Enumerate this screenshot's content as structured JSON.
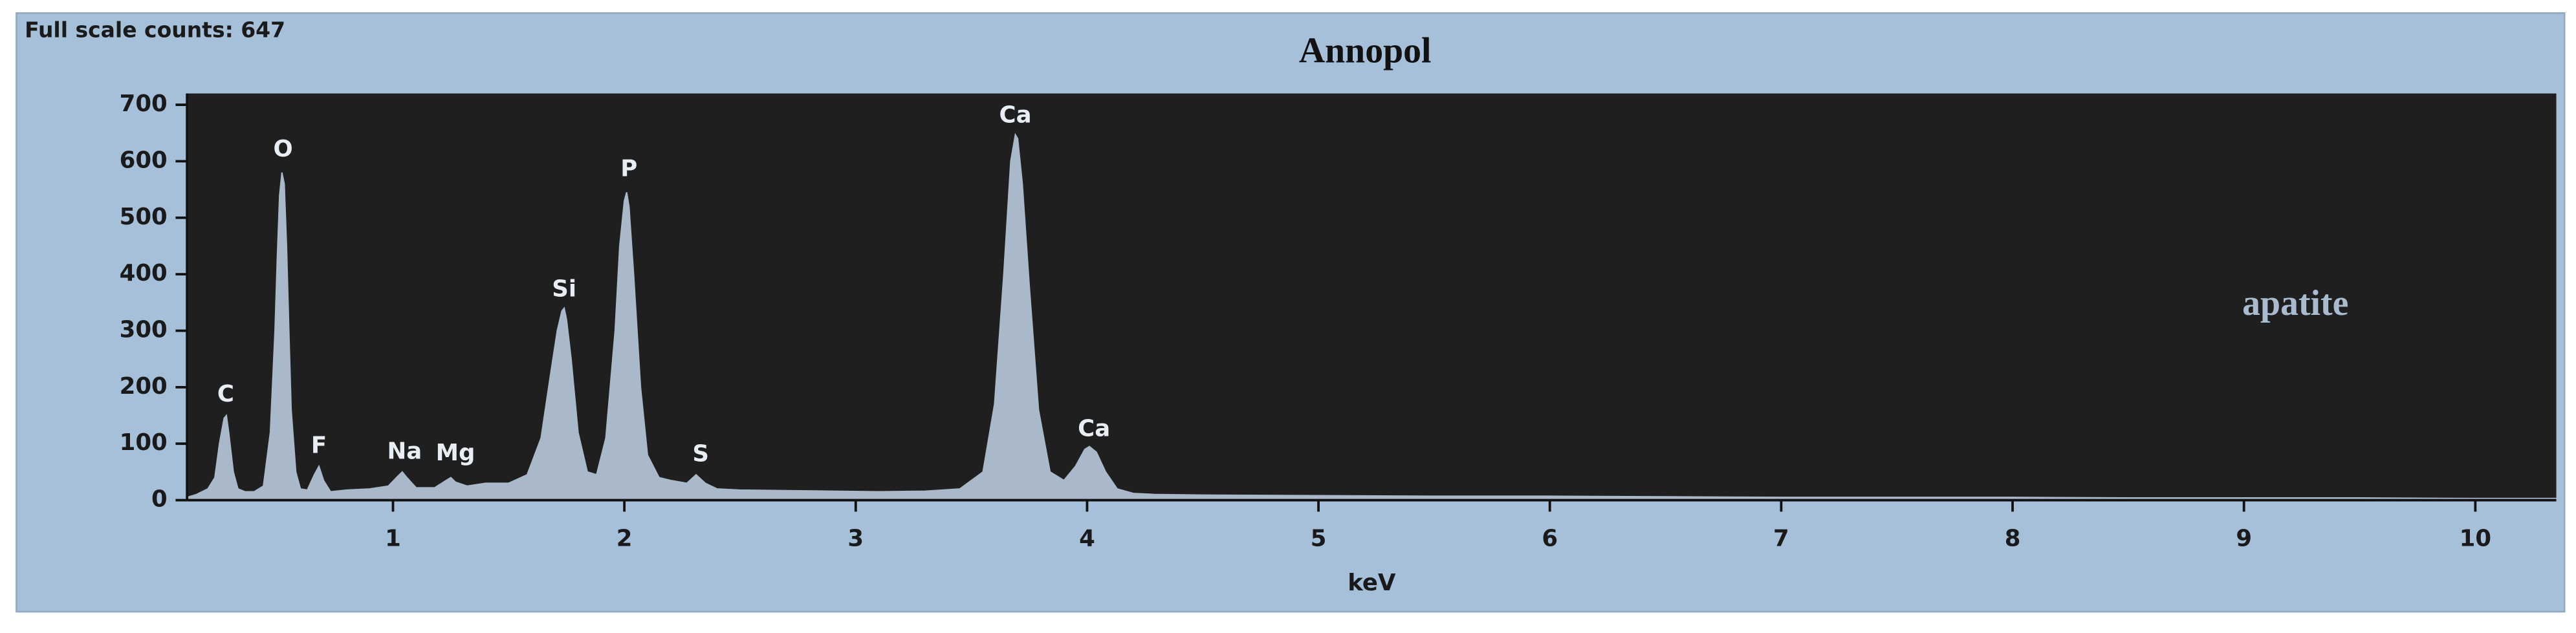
{
  "chart_data": {
    "type": "area",
    "title": "Annopol",
    "subtitle": "Full scale counts: 647",
    "annotation": "apatite",
    "xlabel": "keV",
    "color": "#aab9c9",
    "x": [
      0.11,
      0.15,
      0.2,
      0.23,
      0.25,
      0.27,
      0.28,
      0.29,
      0.31,
      0.33,
      0.36,
      0.4,
      0.44,
      0.47,
      0.49,
      0.5,
      0.51,
      0.52,
      0.53,
      0.54,
      0.55,
      0.56,
      0.58,
      0.6,
      0.63,
      0.66,
      0.68,
      0.7,
      0.73,
      0.8,
      0.9,
      0.98,
      1.02,
      1.04,
      1.06,
      1.1,
      1.18,
      1.23,
      1.25,
      1.27,
      1.32,
      1.4,
      1.5,
      1.58,
      1.64,
      1.68,
      1.71,
      1.73,
      1.74,
      1.75,
      1.77,
      1.8,
      1.84,
      1.88,
      1.92,
      1.96,
      1.98,
      2.0,
      2.01,
      2.02,
      2.04,
      2.07,
      2.1,
      2.15,
      2.2,
      2.27,
      2.31,
      2.35,
      2.4,
      2.5,
      2.7,
      2.9,
      3.1,
      3.3,
      3.45,
      3.55,
      3.6,
      3.64,
      3.67,
      3.69,
      3.7,
      3.72,
      3.75,
      3.79,
      3.84,
      3.9,
      3.95,
      3.99,
      4.01,
      4.04,
      4.08,
      4.13,
      4.2,
      4.3,
      4.5,
      5,
      5.5,
      6,
      6.5,
      7,
      7.5,
      8,
      8.5,
      9,
      9.5,
      10,
      10.35
    ],
    "values": [
      5,
      10,
      20,
      40,
      100,
      145,
      150,
      120,
      50,
      20,
      15,
      15,
      25,
      120,
      300,
      430,
      540,
      580,
      560,
      450,
      300,
      160,
      50,
      20,
      18,
      45,
      60,
      35,
      15,
      18,
      20,
      25,
      42,
      50,
      40,
      22,
      22,
      35,
      40,
      32,
      25,
      30,
      30,
      45,
      110,
      220,
      300,
      335,
      340,
      320,
      250,
      120,
      50,
      45,
      110,
      300,
      450,
      530,
      545,
      520,
      400,
      200,
      80,
      40,
      35,
      30,
      45,
      30,
      20,
      18,
      17,
      16,
      15,
      16,
      20,
      50,
      170,
      400,
      600,
      647,
      640,
      560,
      380,
      160,
      50,
      35,
      60,
      90,
      95,
      85,
      50,
      20,
      12,
      10,
      9,
      8,
      7,
      7,
      6,
      5,
      5,
      5,
      4,
      4,
      4,
      3,
      3
    ],
    "peak_labels": [
      {
        "label": "C",
        "x": 0.277,
        "y": 186
      },
      {
        "label": "O",
        "x": 0.525,
        "y": 620
      },
      {
        "label": "F",
        "x": 0.68,
        "y": 95
      },
      {
        "label": "Na",
        "x": 1.05,
        "y": 85
      },
      {
        "label": "Mg",
        "x": 1.27,
        "y": 82
      },
      {
        "label": "Si",
        "x": 1.74,
        "y": 372
      },
      {
        "label": "P",
        "x": 2.02,
        "y": 585
      },
      {
        "label": "S",
        "x": 2.33,
        "y": 80
      },
      {
        "label": "Ca",
        "x": 3.69,
        "y": 680
      },
      {
        "label": "Ca",
        "x": 4.03,
        "y": 125
      }
    ],
    "xlim": [
      0.11,
      10.35
    ],
    "ylim": [
      0,
      720
    ],
    "xticks": [
      1,
      2,
      3,
      4,
      5,
      6,
      7,
      8,
      9,
      10
    ],
    "yticks": [
      0,
      100,
      200,
      300,
      400,
      500,
      600,
      700
    ]
  }
}
